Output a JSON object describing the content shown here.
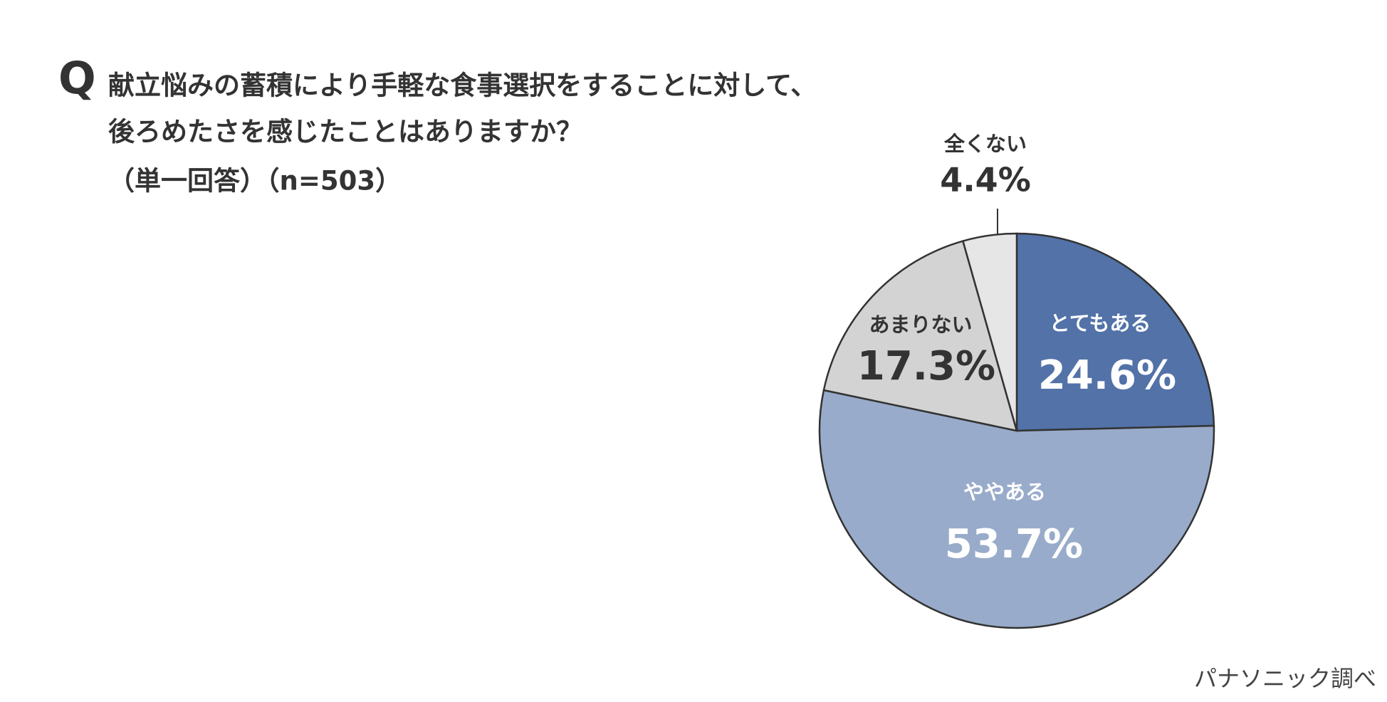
{
  "chart_data": {
    "type": "pie",
    "marker": "Q",
    "title": [
      "献立悩みの蓄積により手軽な食事選択をすることに対して、",
      "後ろめたさを感じたことはありますか？",
      "（単一回答）（n=503）"
    ],
    "categories": [
      "とてもある",
      "ややある",
      "あまりない",
      "全くない"
    ],
    "values": [
      24.6,
      53.7,
      17.3,
      4.4
    ],
    "value_labels": [
      "24.6%",
      "53.7%",
      "17.3%",
      "4.4%"
    ],
    "colors": [
      "#5272a8",
      "#98abca",
      "#d3d3d3",
      "#e6e6e6"
    ],
    "source": "パナソニック調べ"
  }
}
